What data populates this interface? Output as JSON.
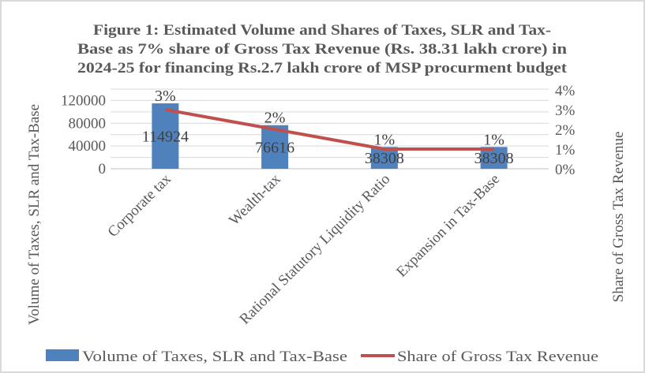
{
  "chart_data": {
    "type": "bar",
    "title_lines": [
      "Figure 1: Estimated Volume and Shares of Taxes, SLR and Tax-",
      "Base as 7% share of Gross Tax Revenue (Rs. 38.31 lakh crore)  in",
      "2024-25 for financing Rs.2.7 lakh crore of MSP procurment budget"
    ],
    "categories": [
      "Corporate tax",
      "Wealth-tax",
      "Rational Statutory Liquidity Ratio",
      "Expansion in Tax-Base"
    ],
    "series": [
      {
        "name": "Volume of Taxes, SLR and Tax-Base",
        "type": "bar",
        "axis": "left",
        "values": [
          114924,
          76616,
          38308,
          38308
        ],
        "labels": [
          "114924",
          "76616",
          "38308",
          "38308"
        ],
        "color": "#4F81BD"
      },
      {
        "name": "Share of Gross Tax Revenue",
        "type": "line",
        "axis": "right",
        "values": [
          3,
          2,
          1,
          1
        ],
        "labels": [
          "3%",
          "2%",
          "1%",
          "1%"
        ],
        "color": "#C0504D"
      }
    ],
    "ylabel": "Volume of Taxes, SLR and Tax-Base",
    "y2label": "Share of Gross Tax Revenue",
    "ylim": [
      0,
      140000
    ],
    "yticks": [
      "0",
      "40000",
      "80000",
      "120000"
    ],
    "ytick_values": [
      0,
      40000,
      80000,
      120000
    ],
    "y2lim": [
      0,
      4
    ],
    "y2ticks": [
      "0%",
      "1%",
      "2%",
      "3%",
      "4%"
    ],
    "y2tick_values": [
      0,
      1,
      2,
      3,
      4
    ],
    "grid": true,
    "gridline_step": 20000,
    "legend_position": "bottom"
  }
}
